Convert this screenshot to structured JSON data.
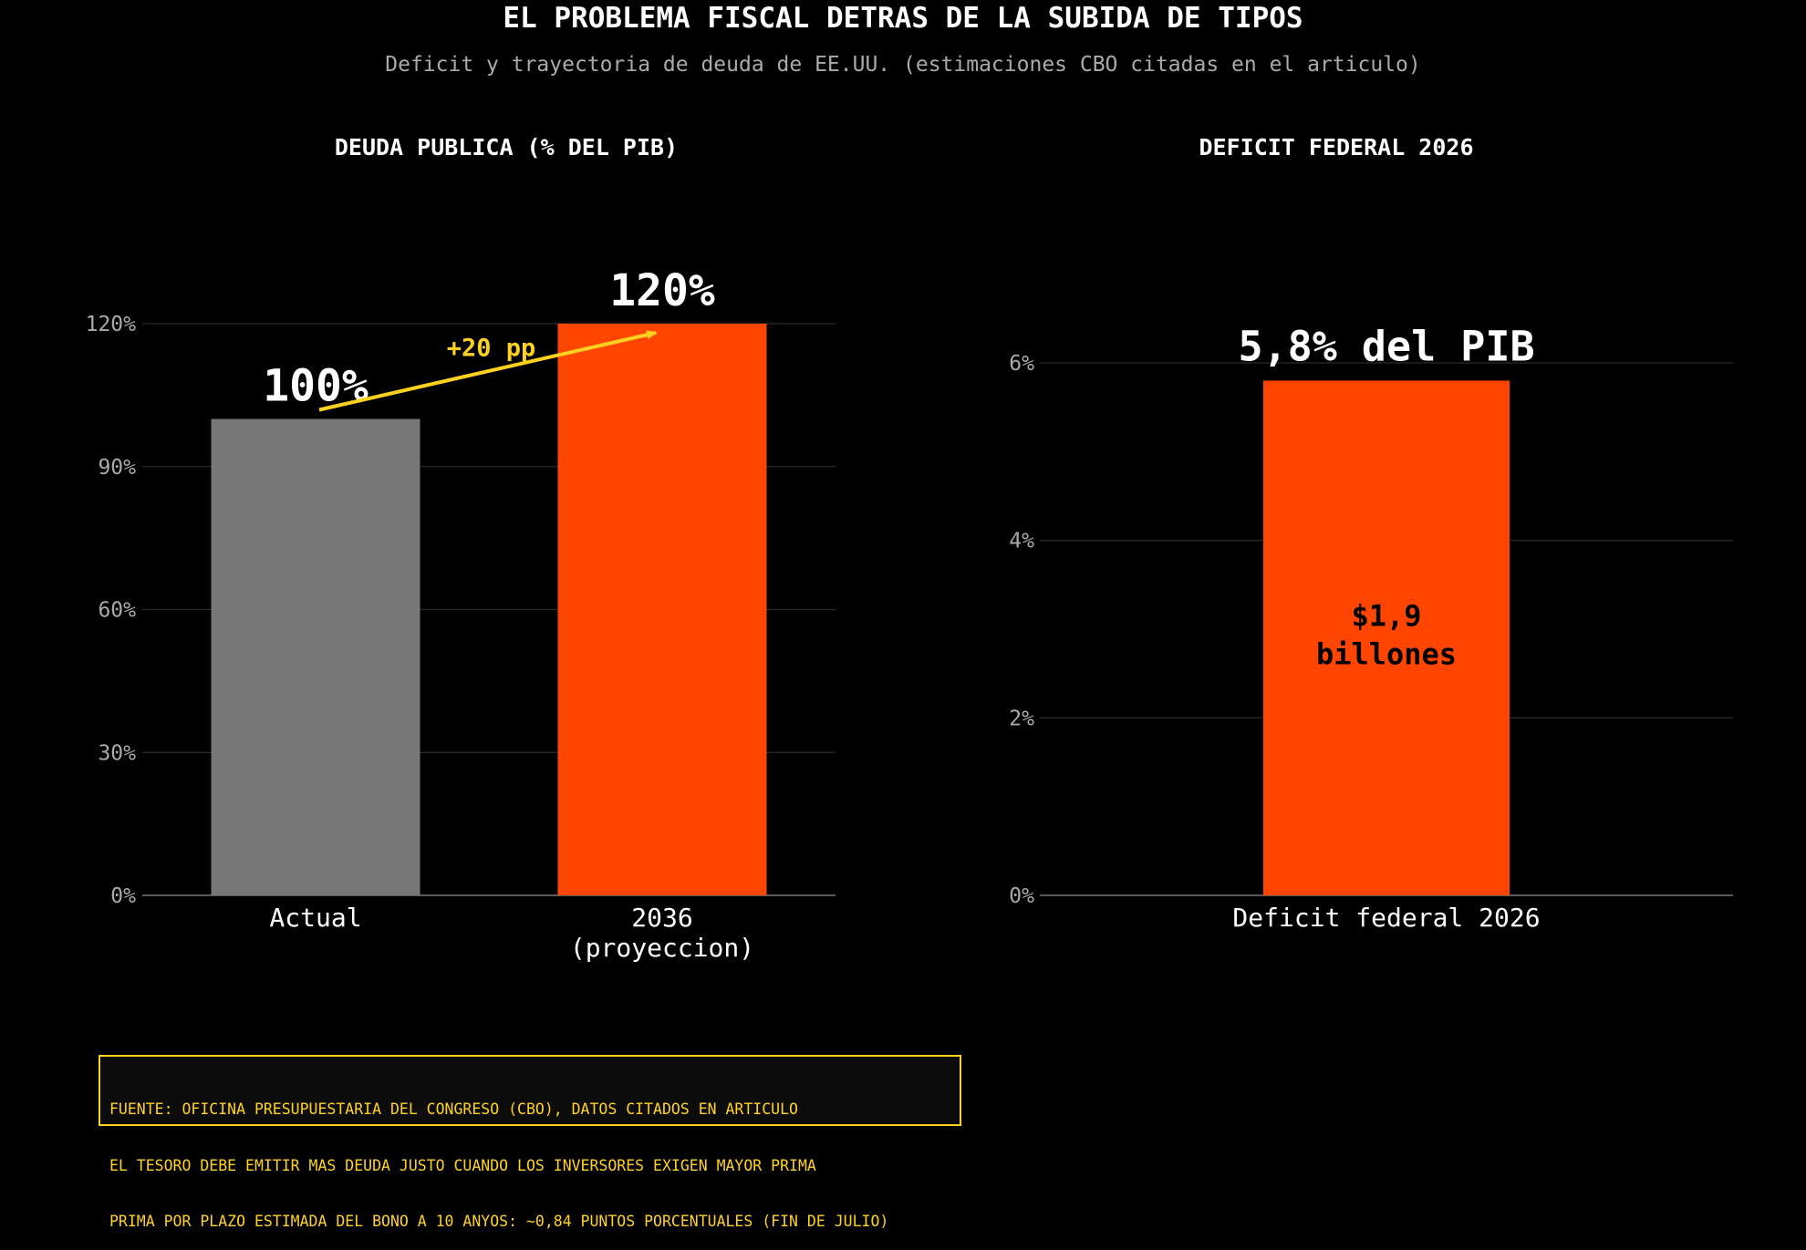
{
  "title": "EL PROBLEMA FISCAL DETRAS DE LA SUBIDA DE TIPOS",
  "subtitle": "Deficit y trayectoria de deuda de EE.UU. (estimaciones CBO citadas en el articulo)",
  "colors": {
    "background": "#000000",
    "text": "#ffffff",
    "muted_text": "#aaaaaa",
    "grid": "#2b2b2b",
    "axis": "#777777",
    "bar_current": "#777777",
    "bar_highlight": "#ff4500",
    "annotation": "#ffd21f"
  },
  "chart_data": [
    {
      "type": "bar",
      "title": "DEUDA PUBLICA (% DEL PIB)",
      "categories": [
        "Actual",
        "2036\n(proyeccion)"
      ],
      "values": [
        100,
        120
      ],
      "value_labels": [
        "100%",
        "120%"
      ],
      "bar_colors": [
        "#777777",
        "#ff4500"
      ],
      "ylim": [
        0,
        120
      ],
      "yticks": [
        0,
        30,
        60,
        90,
        120
      ],
      "ytick_labels": [
        "0%",
        "30%",
        "60%",
        "90%",
        "120%"
      ],
      "grid": true,
      "xlabel": "",
      "ylabel": "",
      "annotation": {
        "text": "+20 pp",
        "type": "arrow",
        "from": "Actual",
        "to": "2036\n(proyeccion)"
      }
    },
    {
      "type": "bar",
      "title": "DEFICIT FEDERAL 2026",
      "categories": [
        "Deficit federal 2026"
      ],
      "values": [
        5.8
      ],
      "value_labels": [
        "5,8% del PIB"
      ],
      "inner_label": "$1,9\nbillones",
      "bar_colors": [
        "#ff4500"
      ],
      "ylim": [
        0,
        6
      ],
      "yticks": [
        0,
        2,
        4,
        6
      ],
      "ytick_labels": [
        "0%",
        "2%",
        "4%",
        "6%"
      ],
      "grid": true,
      "xlabel": "",
      "ylabel": ""
    }
  ],
  "footnote": {
    "lines": [
      "FUENTE: OFICINA PRESUPUESTARIA DEL CONGRESO (CBO), DATOS CITADOS EN ARTICULO",
      "EL TESORO DEBE EMITIR MAS DEUDA JUSTO CUANDO LOS INVERSORES EXIGEN MAYOR PRIMA",
      "PRIMA POR PLAZO ESTIMADA DEL BONO A 10 ANYOS: ~0,84 PUNTOS PORCENTUALES (FIN DE JULIO)"
    ]
  }
}
